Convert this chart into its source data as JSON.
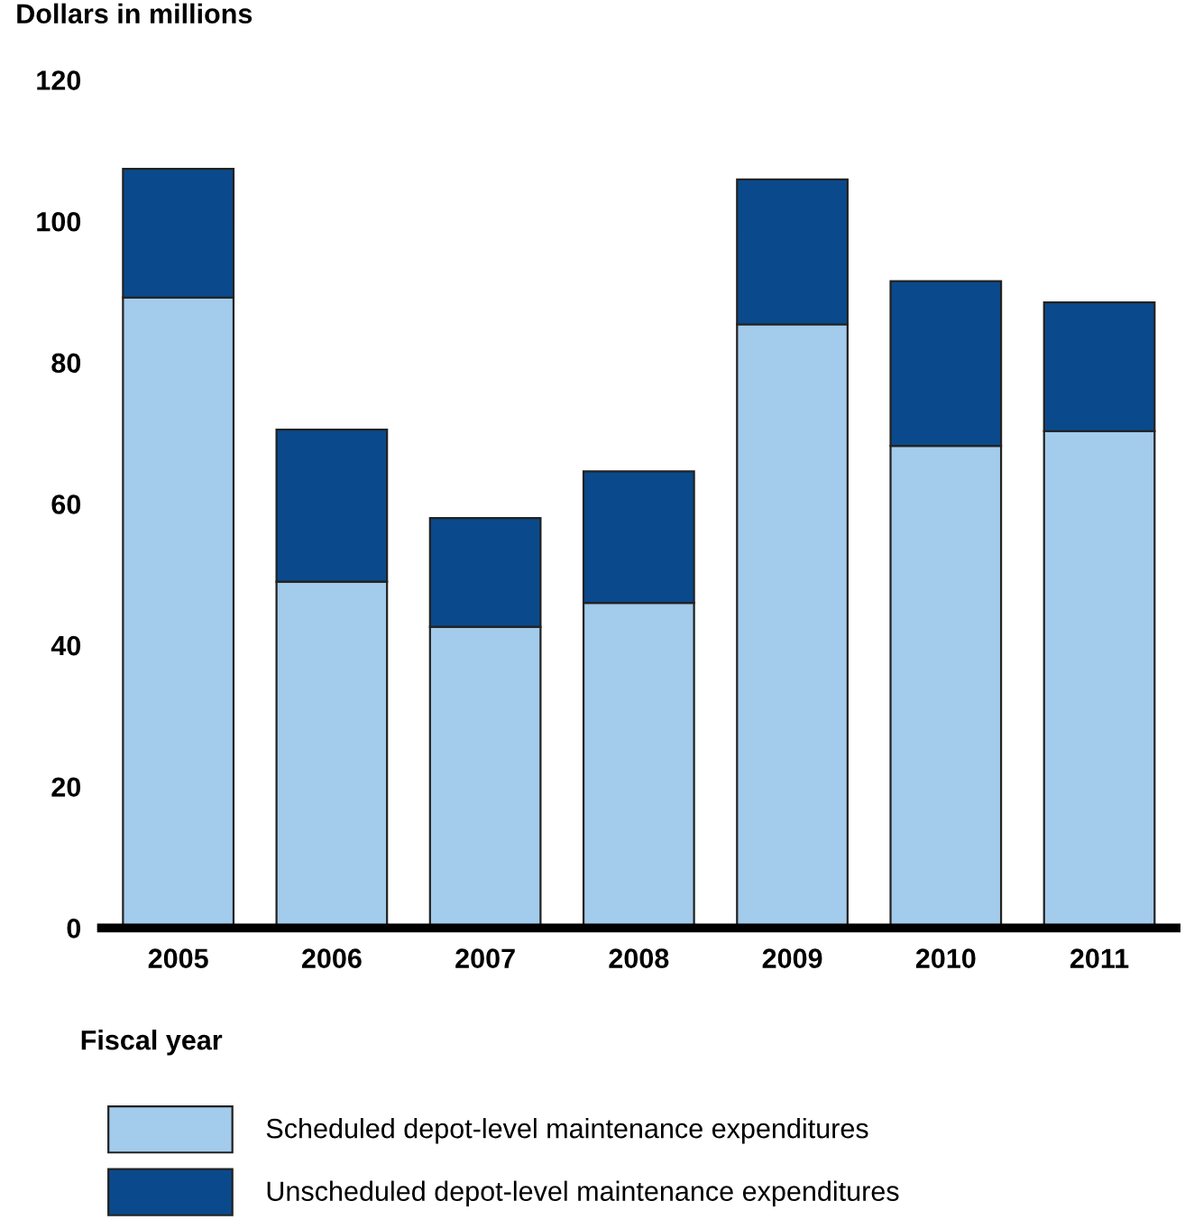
{
  "chart_data": {
    "type": "bar",
    "stacked": true,
    "ylabel": "Dollars in millions",
    "xlabel": "Fiscal year",
    "categories": [
      "2005",
      "2006",
      "2007",
      "2008",
      "2009",
      "2010",
      "2011"
    ],
    "series": [
      {
        "name": "Scheduled depot-level maintenance expenditures",
        "color": "#a3cbeb",
        "values": [
          89.2,
          49,
          42.6,
          46,
          85.4,
          68.2,
          70.3
        ]
      },
      {
        "name": "Unscheduled depot-level maintenance expenditures",
        "color": "#0a4a8c",
        "values": [
          18.2,
          21.5,
          15.4,
          18.6,
          20.5,
          23.3,
          18.2
        ]
      }
    ],
    "ylim": [
      0,
      120
    ],
    "yticks": [
      0,
      20,
      40,
      60,
      80,
      100,
      120
    ],
    "grid": false,
    "legend": "bottom"
  }
}
